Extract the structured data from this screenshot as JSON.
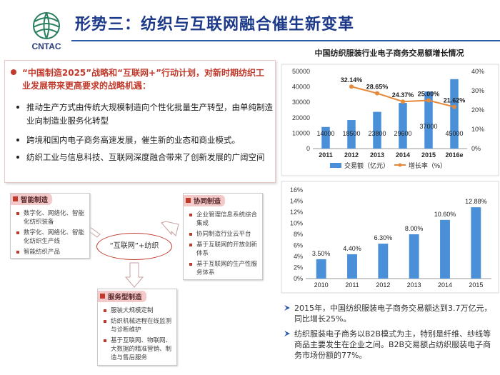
{
  "header": {
    "logo_text": "CNTAC",
    "title": "形势三：纺织与互联网融合催生新变革"
  },
  "textbox": {
    "headline": "“中国制造2025”战略和“互联网+”行动计划，对新时期纺织工业发展带来更高要求的战略机遇：",
    "items": [
      "推动生产方式由传统大规模制造向个性化批量生产转型，由单纯制造业向制造业服务化转型",
      "跨境和国内电子商务高速发展，催生新的业态和商业模式。",
      "纺织工业与信息科技、互联网深度融合带来了创新发展的广阔空间"
    ]
  },
  "diagram": {
    "center": "“互联网”+纺织",
    "smart": {
      "title": "智能制造",
      "items": [
        "数字化、网络化、智能化纺织装备",
        "数字化、网络化、智能化纺织生产线",
        "智能纺织产品"
      ]
    },
    "collab": {
      "title": "协同制造",
      "items": [
        "企业管理信息系统综合集成",
        "协同制造行业云平台",
        "基于互联网的开放创新体系",
        "基于互联网的生产性服务体系"
      ]
    },
    "service": {
      "title": "服务型制造",
      "items": [
        "服装大规模定制",
        "纺织机械远程在线监测与诊断维护",
        "基于互联网、物联网、大数据的精准营销、制造与售后服务"
      ]
    }
  },
  "chart_data": [
    {
      "type": "bar",
      "title": "中国纺织服装行业电子商务交易额增长情况",
      "categories": [
        "2011",
        "2012",
        "2013",
        "2014",
        "2015",
        "2016e"
      ],
      "series": [
        {
          "name": "交易额（亿元）",
          "values": [
            14000,
            18500,
            23800,
            29600,
            37000,
            45000
          ],
          "labels": [
            "14000",
            "18500",
            "23800",
            "29600",
            "37000",
            "45000"
          ],
          "color": "#4a90d9"
        },
        {
          "name": "增长率（%）",
          "type": "line",
          "axis": "right",
          "values": [
            null,
            32.14,
            28.65,
            24.37,
            25.0,
            21.62
          ],
          "labels": [
            "",
            "32.14%",
            "28.65%",
            "24.37%",
            "25.00%",
            "21.62%"
          ],
          "color": "#e58a3b"
        }
      ],
      "ylim": [
        0,
        50000
      ],
      "y_ticks": [
        "0",
        "10000",
        "20000",
        "30000",
        "40000",
        "50000"
      ],
      "y2lim": [
        0,
        40
      ],
      "y2_ticks": [
        "0%",
        "10%",
        "20%",
        "30%",
        "40%"
      ],
      "legend_position": "bottom",
      "grid": false
    },
    {
      "type": "bar",
      "categories": [
        "2010",
        "2011",
        "2012",
        "2013",
        "2014",
        "2015"
      ],
      "series": [
        {
          "values": [
            3.5,
            4.4,
            6.3,
            8.0,
            10.6,
            12.88
          ],
          "labels": [
            "3.50%",
            "4.40%",
            "6.30%",
            "8.00%",
            "10.60%",
            "12.88%"
          ],
          "color": "#4a90d9"
        }
      ],
      "ylim": [
        0,
        16
      ],
      "y_ticks": [
        "0%",
        "2%",
        "4%",
        "6%",
        "8%",
        "10%",
        "12%",
        "14%",
        "16%"
      ],
      "grid": false
    }
  ],
  "notes": [
    "2015年，中国纺织服装电子商务交易额达到3.7万亿元，同比增长25%。",
    "纺织服装电子商务以B2B模式为主，特别是纤维、纱线等商品主要发生在企业之间。B2B交易额占纺织服装电子商务市场份额的77%。"
  ],
  "colors": {
    "title": "#1d3a8a",
    "accent": "#c0392b",
    "bar": "#4a90d9",
    "line": "#e58a3b"
  }
}
